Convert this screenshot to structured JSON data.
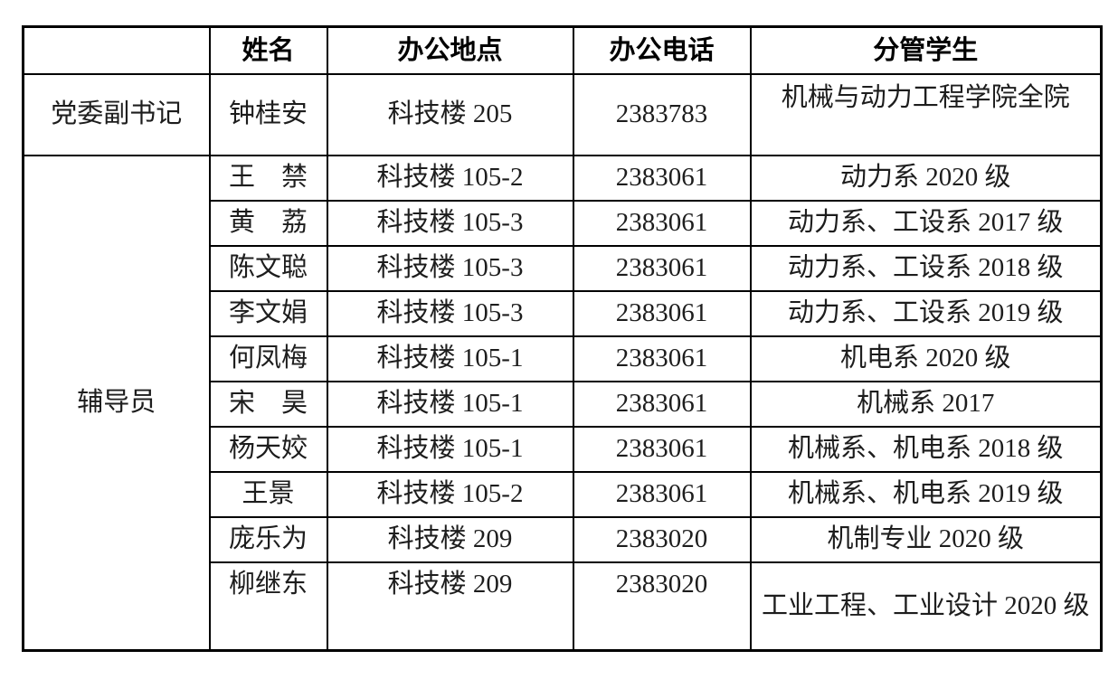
{
  "table": {
    "headers": {
      "role": "",
      "name": "姓名",
      "office": "办公地点",
      "phone": "办公电话",
      "students": "分管学生"
    },
    "roles": {
      "secretary": "党委副书记",
      "counselor": "辅导员"
    },
    "rows": [
      {
        "name": "钟桂安",
        "office": "科技楼 205",
        "phone": "2383783",
        "students": "机械与动力工程学院全院\n "
      },
      {
        "name": "王　禁",
        "office": "科技楼 105-2",
        "phone": "2383061",
        "students": "动力系 2020 级"
      },
      {
        "name": "黄　荔",
        "office": "科技楼 105-3",
        "phone": "2383061",
        "students": "动力系、工设系 2017 级"
      },
      {
        "name": "陈文聪",
        "office": "科技楼 105-3",
        "phone": "2383061",
        "students": "动力系、工设系 2018 级"
      },
      {
        "name": "李文娟",
        "office": "科技楼 105-3",
        "phone": "2383061",
        "students": "动力系、工设系 2019 级"
      },
      {
        "name": "何凤梅",
        "office": "科技楼 105-1",
        "phone": "2383061",
        "students": "机电系 2020 级"
      },
      {
        "name": "宋　昊",
        "office": "科技楼 105-1",
        "phone": "2383061",
        "students": "机械系 2017"
      },
      {
        "name": "杨天姣",
        "office": "科技楼 105-1",
        "phone": "2383061",
        "students": "机械系、机电系 2018 级"
      },
      {
        "name": "王景",
        "office": "科技楼 105-2",
        "phone": "2383061",
        "students": "机械系、机电系 2019 级"
      },
      {
        "name": "庞乐为",
        "office": "科技楼 209",
        "phone": "2383020",
        "students": "机制专业 2020 级"
      },
      {
        "name": "柳继东",
        "office": "科技楼 209",
        "phone": "2383020",
        "students": "工业工程、工业设计 2020 级"
      }
    ]
  },
  "colors": {
    "border": "#000000",
    "header_text": "#000000",
    "body_text": "#1d1d1d",
    "background": "#ffffff"
  }
}
